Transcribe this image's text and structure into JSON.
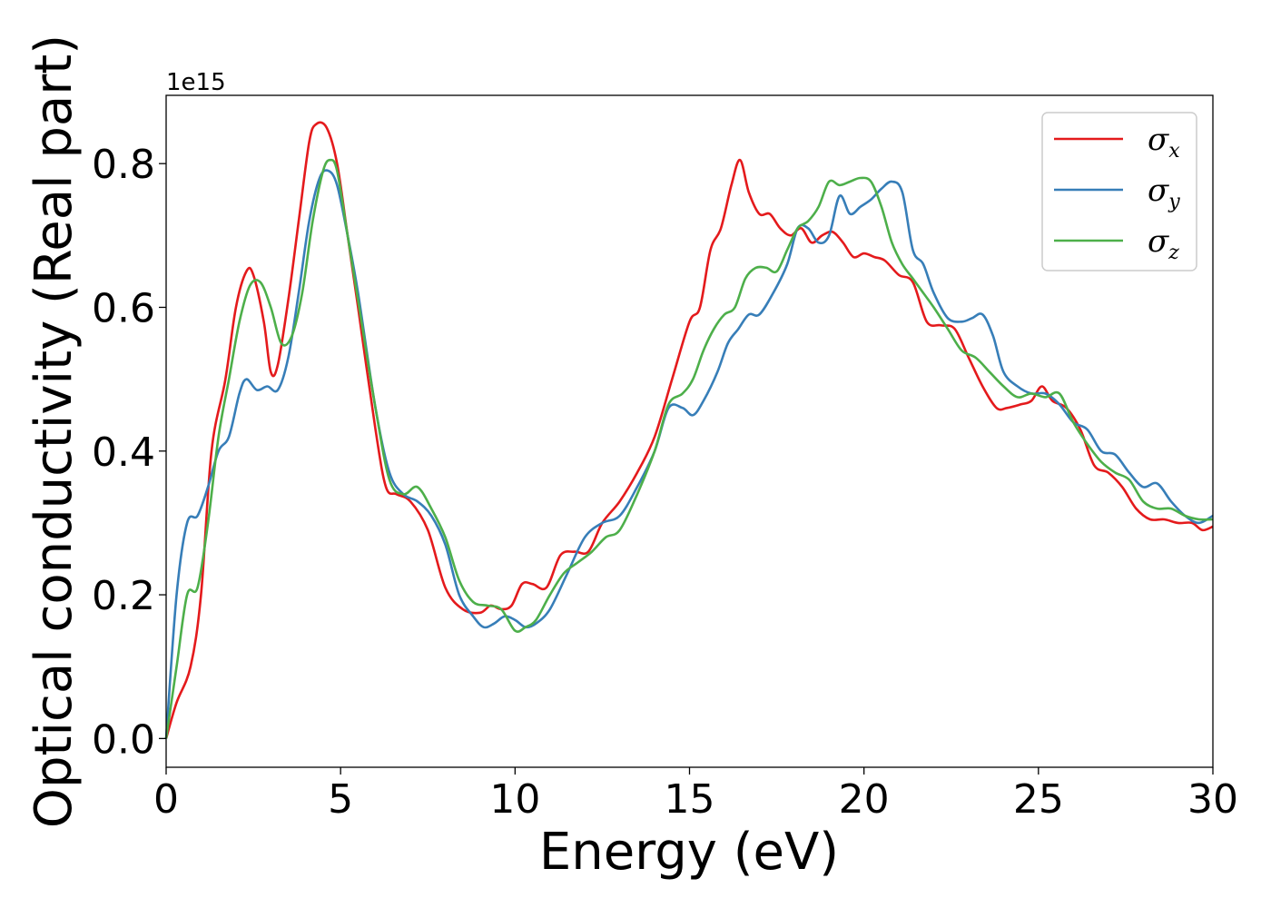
{
  "chart_data": {
    "type": "line",
    "xlabel": "Energy (eV)",
    "ylabel": "Optical conductivity (Real part)",
    "y_offset_label": "1e15",
    "xlim": [
      0,
      30
    ],
    "ylim": [
      -0.04,
      0.895
    ],
    "xticks": [
      0,
      5,
      10,
      15,
      20,
      25,
      30
    ],
    "xtick_labels": [
      "0",
      "5",
      "10",
      "15",
      "20",
      "25",
      "30"
    ],
    "yticks": [
      0.0,
      0.2,
      0.4,
      0.6,
      0.8
    ],
    "ytick_labels": [
      "0.0",
      "0.2",
      "0.4",
      "0.6",
      "0.8"
    ],
    "grid": false,
    "legend_position": "top-right",
    "series": [
      {
        "name": "σx",
        "symbol": "σ",
        "subscript": "x",
        "color": "#e41a1c",
        "x": [
          0,
          0.3,
          0.7,
          1.0,
          1.3,
          1.7,
          2.0,
          2.3,
          2.5,
          2.8,
          3.0,
          3.2,
          3.5,
          3.8,
          4.1,
          4.3,
          4.6,
          4.9,
          5.2,
          5.5,
          6.0,
          6.3,
          6.6,
          7.0,
          7.5,
          8.0,
          8.5,
          9.0,
          9.3,
          9.6,
          9.9,
          10.2,
          10.5,
          10.9,
          11.3,
          11.7,
          12.1,
          12.5,
          13.0,
          13.5,
          14.0,
          14.5,
          15.0,
          15.3,
          15.6,
          15.9,
          16.2,
          16.45,
          16.7,
          17.0,
          17.3,
          17.6,
          17.9,
          18.2,
          18.5,
          18.8,
          19.1,
          19.4,
          19.7,
          20.0,
          20.3,
          20.6,
          21.0,
          21.4,
          21.8,
          22.2,
          22.6,
          23.0,
          23.4,
          23.8,
          24.1,
          24.5,
          24.8,
          25.1,
          25.4,
          25.8,
          26.2,
          26.6,
          27.0,
          27.4,
          27.8,
          28.2,
          28.6,
          29.0,
          29.4,
          29.7,
          30.0
        ],
        "values": [
          0.0,
          0.05,
          0.1,
          0.2,
          0.4,
          0.5,
          0.6,
          0.65,
          0.645,
          0.58,
          0.51,
          0.52,
          0.61,
          0.72,
          0.83,
          0.855,
          0.85,
          0.8,
          0.7,
          0.6,
          0.43,
          0.35,
          0.34,
          0.33,
          0.29,
          0.21,
          0.18,
          0.175,
          0.185,
          0.18,
          0.185,
          0.215,
          0.215,
          0.21,
          0.255,
          0.26,
          0.26,
          0.3,
          0.33,
          0.37,
          0.42,
          0.5,
          0.58,
          0.6,
          0.68,
          0.71,
          0.77,
          0.805,
          0.76,
          0.73,
          0.73,
          0.71,
          0.7,
          0.71,
          0.69,
          0.7,
          0.705,
          0.69,
          0.67,
          0.675,
          0.67,
          0.665,
          0.645,
          0.635,
          0.58,
          0.575,
          0.57,
          0.53,
          0.49,
          0.46,
          0.46,
          0.465,
          0.47,
          0.49,
          0.47,
          0.46,
          0.43,
          0.38,
          0.37,
          0.35,
          0.32,
          0.305,
          0.305,
          0.3,
          0.3,
          0.29,
          0.295
        ]
      },
      {
        "name": "σy",
        "symbol": "σ",
        "subscript": "y",
        "color": "#377eb8",
        "x": [
          0,
          0.3,
          0.6,
          0.9,
          1.2,
          1.5,
          1.8,
          2.1,
          2.3,
          2.6,
          2.9,
          3.2,
          3.5,
          3.8,
          4.1,
          4.4,
          4.65,
          4.9,
          5.2,
          5.5,
          6.0,
          6.4,
          6.8,
          7.2,
          7.6,
          8.0,
          8.4,
          8.8,
          9.1,
          9.4,
          9.7,
          10.0,
          10.3,
          10.6,
          11.0,
          11.5,
          12.0,
          12.5,
          13.0,
          13.5,
          14.0,
          14.4,
          14.8,
          15.1,
          15.4,
          15.8,
          16.1,
          16.4,
          16.7,
          17.0,
          17.4,
          17.8,
          18.1,
          18.4,
          18.7,
          19.0,
          19.3,
          19.6,
          19.9,
          20.2,
          20.5,
          20.8,
          21.1,
          21.4,
          21.7,
          22.0,
          22.4,
          22.8,
          23.1,
          23.4,
          23.7,
          24.0,
          24.4,
          24.8,
          25.2,
          25.6,
          26.0,
          26.4,
          26.8,
          27.2,
          27.6,
          28.0,
          28.4,
          28.8,
          29.2,
          29.6,
          30.0
        ],
        "values": [
          0.0,
          0.2,
          0.3,
          0.31,
          0.35,
          0.4,
          0.42,
          0.48,
          0.5,
          0.485,
          0.49,
          0.485,
          0.53,
          0.62,
          0.72,
          0.78,
          0.79,
          0.77,
          0.7,
          0.62,
          0.46,
          0.37,
          0.34,
          0.33,
          0.31,
          0.27,
          0.2,
          0.17,
          0.155,
          0.16,
          0.17,
          0.165,
          0.155,
          0.16,
          0.18,
          0.23,
          0.28,
          0.3,
          0.31,
          0.35,
          0.4,
          0.46,
          0.46,
          0.45,
          0.47,
          0.51,
          0.55,
          0.57,
          0.59,
          0.59,
          0.62,
          0.66,
          0.71,
          0.71,
          0.69,
          0.7,
          0.755,
          0.73,
          0.74,
          0.75,
          0.765,
          0.775,
          0.76,
          0.68,
          0.66,
          0.62,
          0.585,
          0.58,
          0.585,
          0.59,
          0.56,
          0.51,
          0.49,
          0.48,
          0.48,
          0.465,
          0.44,
          0.43,
          0.4,
          0.395,
          0.37,
          0.35,
          0.355,
          0.33,
          0.31,
          0.3,
          0.31
        ]
      },
      {
        "name": "σz",
        "symbol": "σ",
        "subscript": "z",
        "color": "#4daf4a",
        "x": [
          0,
          0.3,
          0.6,
          0.9,
          1.2,
          1.5,
          1.8,
          2.1,
          2.4,
          2.7,
          3.0,
          3.3,
          3.6,
          3.9,
          4.2,
          4.5,
          4.7,
          4.9,
          5.2,
          5.5,
          6.0,
          6.4,
          6.8,
          7.2,
          7.6,
          8.0,
          8.4,
          8.8,
          9.2,
          9.6,
          10.0,
          10.3,
          10.6,
          11.0,
          11.4,
          11.8,
          12.2,
          12.6,
          13.0,
          13.5,
          14.0,
          14.4,
          14.8,
          15.1,
          15.4,
          15.7,
          16.0,
          16.3,
          16.6,
          16.9,
          17.2,
          17.5,
          17.8,
          18.1,
          18.4,
          18.7,
          19.0,
          19.3,
          19.6,
          19.9,
          20.2,
          20.5,
          20.8,
          21.1,
          21.4,
          21.7,
          22.0,
          22.4,
          22.8,
          23.2,
          23.6,
          24.0,
          24.4,
          24.8,
          25.2,
          25.6,
          26.0,
          26.4,
          26.8,
          27.2,
          27.6,
          28.0,
          28.4,
          28.8,
          29.2,
          29.6,
          30.0
        ],
        "values": [
          0.0,
          0.1,
          0.2,
          0.21,
          0.3,
          0.42,
          0.5,
          0.58,
          0.63,
          0.635,
          0.6,
          0.55,
          0.56,
          0.62,
          0.72,
          0.79,
          0.805,
          0.79,
          0.7,
          0.61,
          0.46,
          0.36,
          0.34,
          0.35,
          0.32,
          0.28,
          0.22,
          0.19,
          0.185,
          0.18,
          0.15,
          0.155,
          0.165,
          0.2,
          0.23,
          0.245,
          0.26,
          0.28,
          0.29,
          0.34,
          0.4,
          0.465,
          0.48,
          0.5,
          0.54,
          0.57,
          0.59,
          0.6,
          0.64,
          0.655,
          0.655,
          0.65,
          0.68,
          0.71,
          0.72,
          0.74,
          0.775,
          0.77,
          0.775,
          0.78,
          0.775,
          0.74,
          0.69,
          0.66,
          0.64,
          0.62,
          0.6,
          0.57,
          0.54,
          0.53,
          0.51,
          0.49,
          0.475,
          0.48,
          0.475,
          0.48,
          0.44,
          0.41,
          0.385,
          0.37,
          0.36,
          0.33,
          0.32,
          0.32,
          0.31,
          0.305,
          0.305
        ]
      }
    ]
  }
}
